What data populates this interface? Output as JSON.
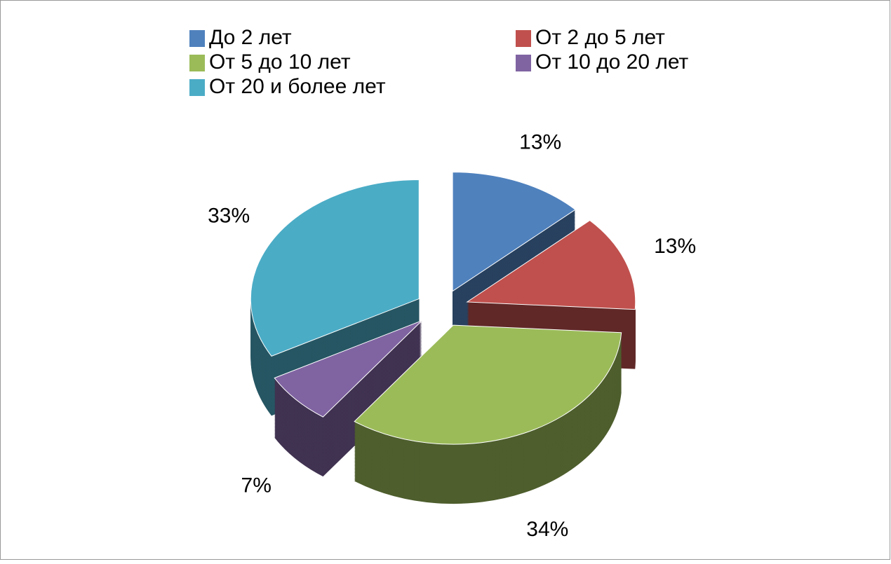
{
  "chart_data": {
    "type": "pie3d",
    "categories": [
      "До 2 лет",
      "От 2 до 5 лет",
      "От 5 до 10 лет",
      "От 10 до 20 лет",
      "От 20 и более лет"
    ],
    "values": [
      13,
      13,
      34,
      7,
      33
    ],
    "value_labels": [
      "13%",
      "13%",
      "34%",
      "7%",
      "33%"
    ],
    "colors": [
      "#4f81bd",
      "#c0504d",
      "#9bbb59",
      "#8064a2",
      "#4bacc6"
    ],
    "legend": "top"
  }
}
